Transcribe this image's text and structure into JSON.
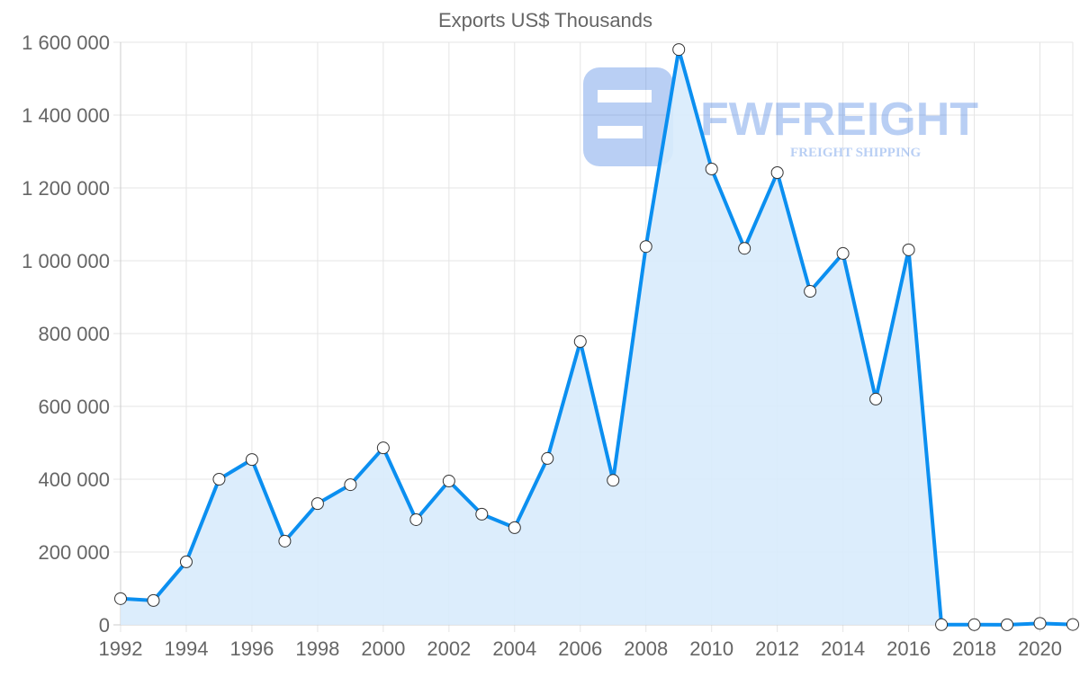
{
  "chart_data": {
    "type": "area",
    "title": "Exports US$ Thousands",
    "xlabel": "",
    "ylabel": "",
    "ylim": [
      0,
      1600000
    ],
    "xlim": [
      1992,
      2021
    ],
    "grid": true,
    "legend": "none",
    "x_ticks": [
      "1992",
      "1994",
      "1996",
      "1998",
      "2000",
      "2002",
      "2004",
      "2006",
      "2008",
      "2010",
      "2012",
      "2014",
      "2016",
      "2018",
      "2020"
    ],
    "y_ticks": [
      "0",
      "200 000",
      "400 000",
      "600 000",
      "800 000",
      "1 000 000",
      "1 200 000",
      "1 400 000",
      "1 600 000"
    ],
    "x": [
      1992,
      1993,
      1994,
      1995,
      1996,
      1997,
      1998,
      1999,
      2000,
      2001,
      2002,
      2003,
      2004,
      2005,
      2006,
      2007,
      2008,
      2009,
      2010,
      2011,
      2012,
      2013,
      2014,
      2015,
      2016,
      2017,
      2018,
      2019,
      2020,
      2021
    ],
    "series": [
      {
        "name": "Exports US$ Thousands",
        "values": [
          72000,
          67000,
          173000,
          400000,
          454000,
          230000,
          333000,
          385000,
          486000,
          289000,
          395000,
          304000,
          267000,
          457000,
          778000,
          397000,
          1039000,
          1580000,
          1252000,
          1034000,
          1242000,
          916000,
          1020000,
          620000,
          1030000,
          500,
          500,
          300,
          4000,
          1000
        ]
      }
    ],
    "colors": {
      "line": "#0b8ff0",
      "fill": "#d8ebfc",
      "grid": "#e5e5e5",
      "point_fill": "#ffffff"
    }
  },
  "watermark": {
    "brand": "FWFREIGHT",
    "tagline": "FREIGHT SHIPPING"
  }
}
